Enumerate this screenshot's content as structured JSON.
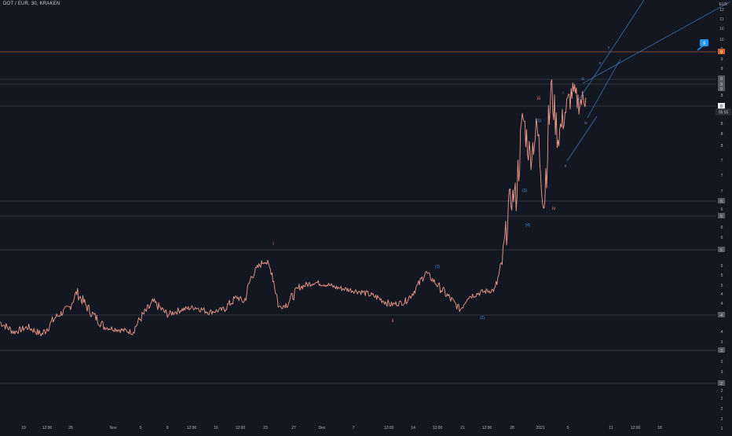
{
  "header": {
    "symbol_title": "DOT / EUR, 30, KRAKEN",
    "currency": "EUR"
  },
  "colors": {
    "background": "#131722",
    "price_series": "#ef9a8a",
    "horizontal_level": "#3a3f4c",
    "target_level": "#a05a3c",
    "wave_label_major": "#e0786a",
    "wave_label_minor": "#4a8fd8",
    "trendline": "#3f7fc0",
    "marker_box": "#2196f3",
    "axis_text": "#b2b5be",
    "price_tag_bg": "#555a66",
    "price_tag_bright": "#d1d4dc",
    "target_tag_bg": "#d4602a"
  },
  "chart_data": {
    "type": "line",
    "title": "DOT / EUR, 30, KRAKEN",
    "x_tick_labels": [
      "19",
      "12:00",
      "26",
      "Nov",
      "5",
      "9",
      "12:00",
      "16",
      "12:00",
      "23",
      "27",
      "Dec",
      "7",
      "12:00",
      "14",
      "12:00",
      "21",
      "12:00",
      "28",
      "2021",
      "5",
      "11",
      "12:00",
      "18"
    ],
    "y_tick_labels": [
      "12",
      "11",
      "10",
      "10",
      "9",
      "9",
      "9",
      "8",
      "8",
      "8",
      "8",
      "7",
      "7",
      "7",
      "6",
      "6",
      "6",
      "5",
      "5",
      "5",
      "4",
      "4",
      "4",
      "3",
      "3",
      "3",
      "2",
      "2",
      "2",
      "2",
      "1"
    ],
    "price_tags": [
      "9",
      "9",
      "9",
      "8",
      "8",
      "6",
      "6",
      "5",
      "4",
      "3",
      "2"
    ],
    "current_price_tag": "8",
    "current_price_countdown": "05:55",
    "target_tag": "9",
    "marker_label": "9",
    "wave_labels_major": [
      "i",
      "ii",
      "iii",
      "iv"
    ],
    "wave_labels_minor": [
      "(1)",
      "(2)",
      "(3)",
      "(4)",
      "(5)",
      "i",
      "ii",
      "iii",
      "iv",
      "v",
      "v"
    ],
    "series": [
      {
        "x": [
          "2020-10-16",
          "2020-10-18",
          "2020-10-20",
          "2020-10-22",
          "2020-10-24",
          "2020-10-26",
          "2020-10-27",
          "2020-10-29",
          "2020-10-31",
          "2020-11-02",
          "2020-11-04",
          "2020-11-05",
          "2020-11-07",
          "2020-11-09",
          "2020-11-11",
          "2020-11-13",
          "2020-11-15",
          "2020-11-17",
          "2020-11-19",
          "2020-11-20",
          "2020-11-21",
          "2020-11-22",
          "2020-11-23",
          "2020-11-24",
          "2020-11-25",
          "2020-11-26",
          "2020-11-28",
          "2020-11-30",
          "2020-12-02",
          "2020-12-03",
          "2020-12-05",
          "2020-12-07",
          "2020-12-09",
          "2020-12-11",
          "2020-12-13",
          "2020-12-14",
          "2020-12-15",
          "2020-12-16",
          "2020-12-17",
          "2020-12-18",
          "2020-12-20",
          "2020-12-21",
          "2020-12-22",
          "2020-12-24",
          "2020-12-26",
          "2020-12-27",
          "2020-12-28",
          "2020-12-29",
          "2020-12-30",
          "2020-12-31",
          "2021-01-01",
          "2021-01-02",
          "2021-01-03",
          "2021-01-04",
          "2021-01-05",
          "2021-01-06",
          "2021-01-07",
          "2021-01-08"
        ],
        "values": [
          4.2,
          4.0,
          4.1,
          3.95,
          4.3,
          4.5,
          4.8,
          4.4,
          4.1,
          4.05,
          4.0,
          4.25,
          4.6,
          4.35,
          4.45,
          4.5,
          4.4,
          4.45,
          4.7,
          4.6,
          5.1,
          5.3,
          5.45,
          5.2,
          4.5,
          4.55,
          4.9,
          5.0,
          4.95,
          4.9,
          4.85,
          4.8,
          4.7,
          4.55,
          4.6,
          4.75,
          4.95,
          5.2,
          5.05,
          4.9,
          4.6,
          4.45,
          4.7,
          4.8,
          4.85,
          5.4,
          6.6,
          6.8,
          8.3,
          7.5,
          8.1,
          6.6,
          8.9,
          7.9,
          8.4,
          8.8,
          8.6,
          8.7
        ]
      }
    ]
  }
}
